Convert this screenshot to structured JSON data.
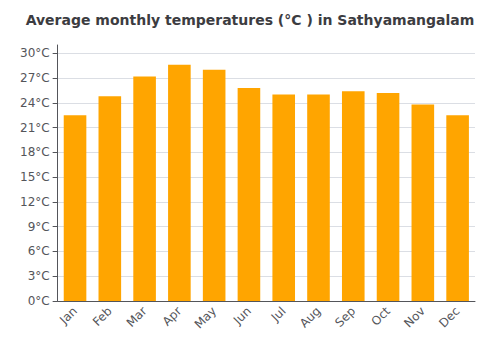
{
  "chart_data": {
    "type": "bar",
    "title": "Average monthly temperatures (°C ) in Sathyamangalam",
    "categories": [
      "Jan",
      "Feb",
      "Mar",
      "Apr",
      "May",
      "Jun",
      "Jul",
      "Aug",
      "Sep",
      "Oct",
      "Nov",
      "Dec"
    ],
    "values": [
      22.5,
      24.8,
      27.2,
      28.6,
      28.0,
      25.8,
      25.0,
      25.0,
      25.4,
      25.2,
      23.8,
      22.5
    ],
    "color": "#FFA500",
    "ylim": [
      0,
      31
    ],
    "yticks": [
      {
        "value": 0,
        "label": "0°C"
      },
      {
        "value": 3,
        "label": "3°C"
      },
      {
        "value": 6,
        "label": "6°C"
      },
      {
        "value": 9,
        "label": "9°C"
      },
      {
        "value": 12,
        "label": "12°C"
      },
      {
        "value": 15,
        "label": "15°C"
      },
      {
        "value": 18,
        "label": "18°C"
      },
      {
        "value": 21,
        "label": "21°C"
      },
      {
        "value": 24,
        "label": "24°C"
      },
      {
        "value": 27,
        "label": "27°C"
      },
      {
        "value": 30,
        "label": "30°C"
      }
    ],
    "grid": true
  }
}
